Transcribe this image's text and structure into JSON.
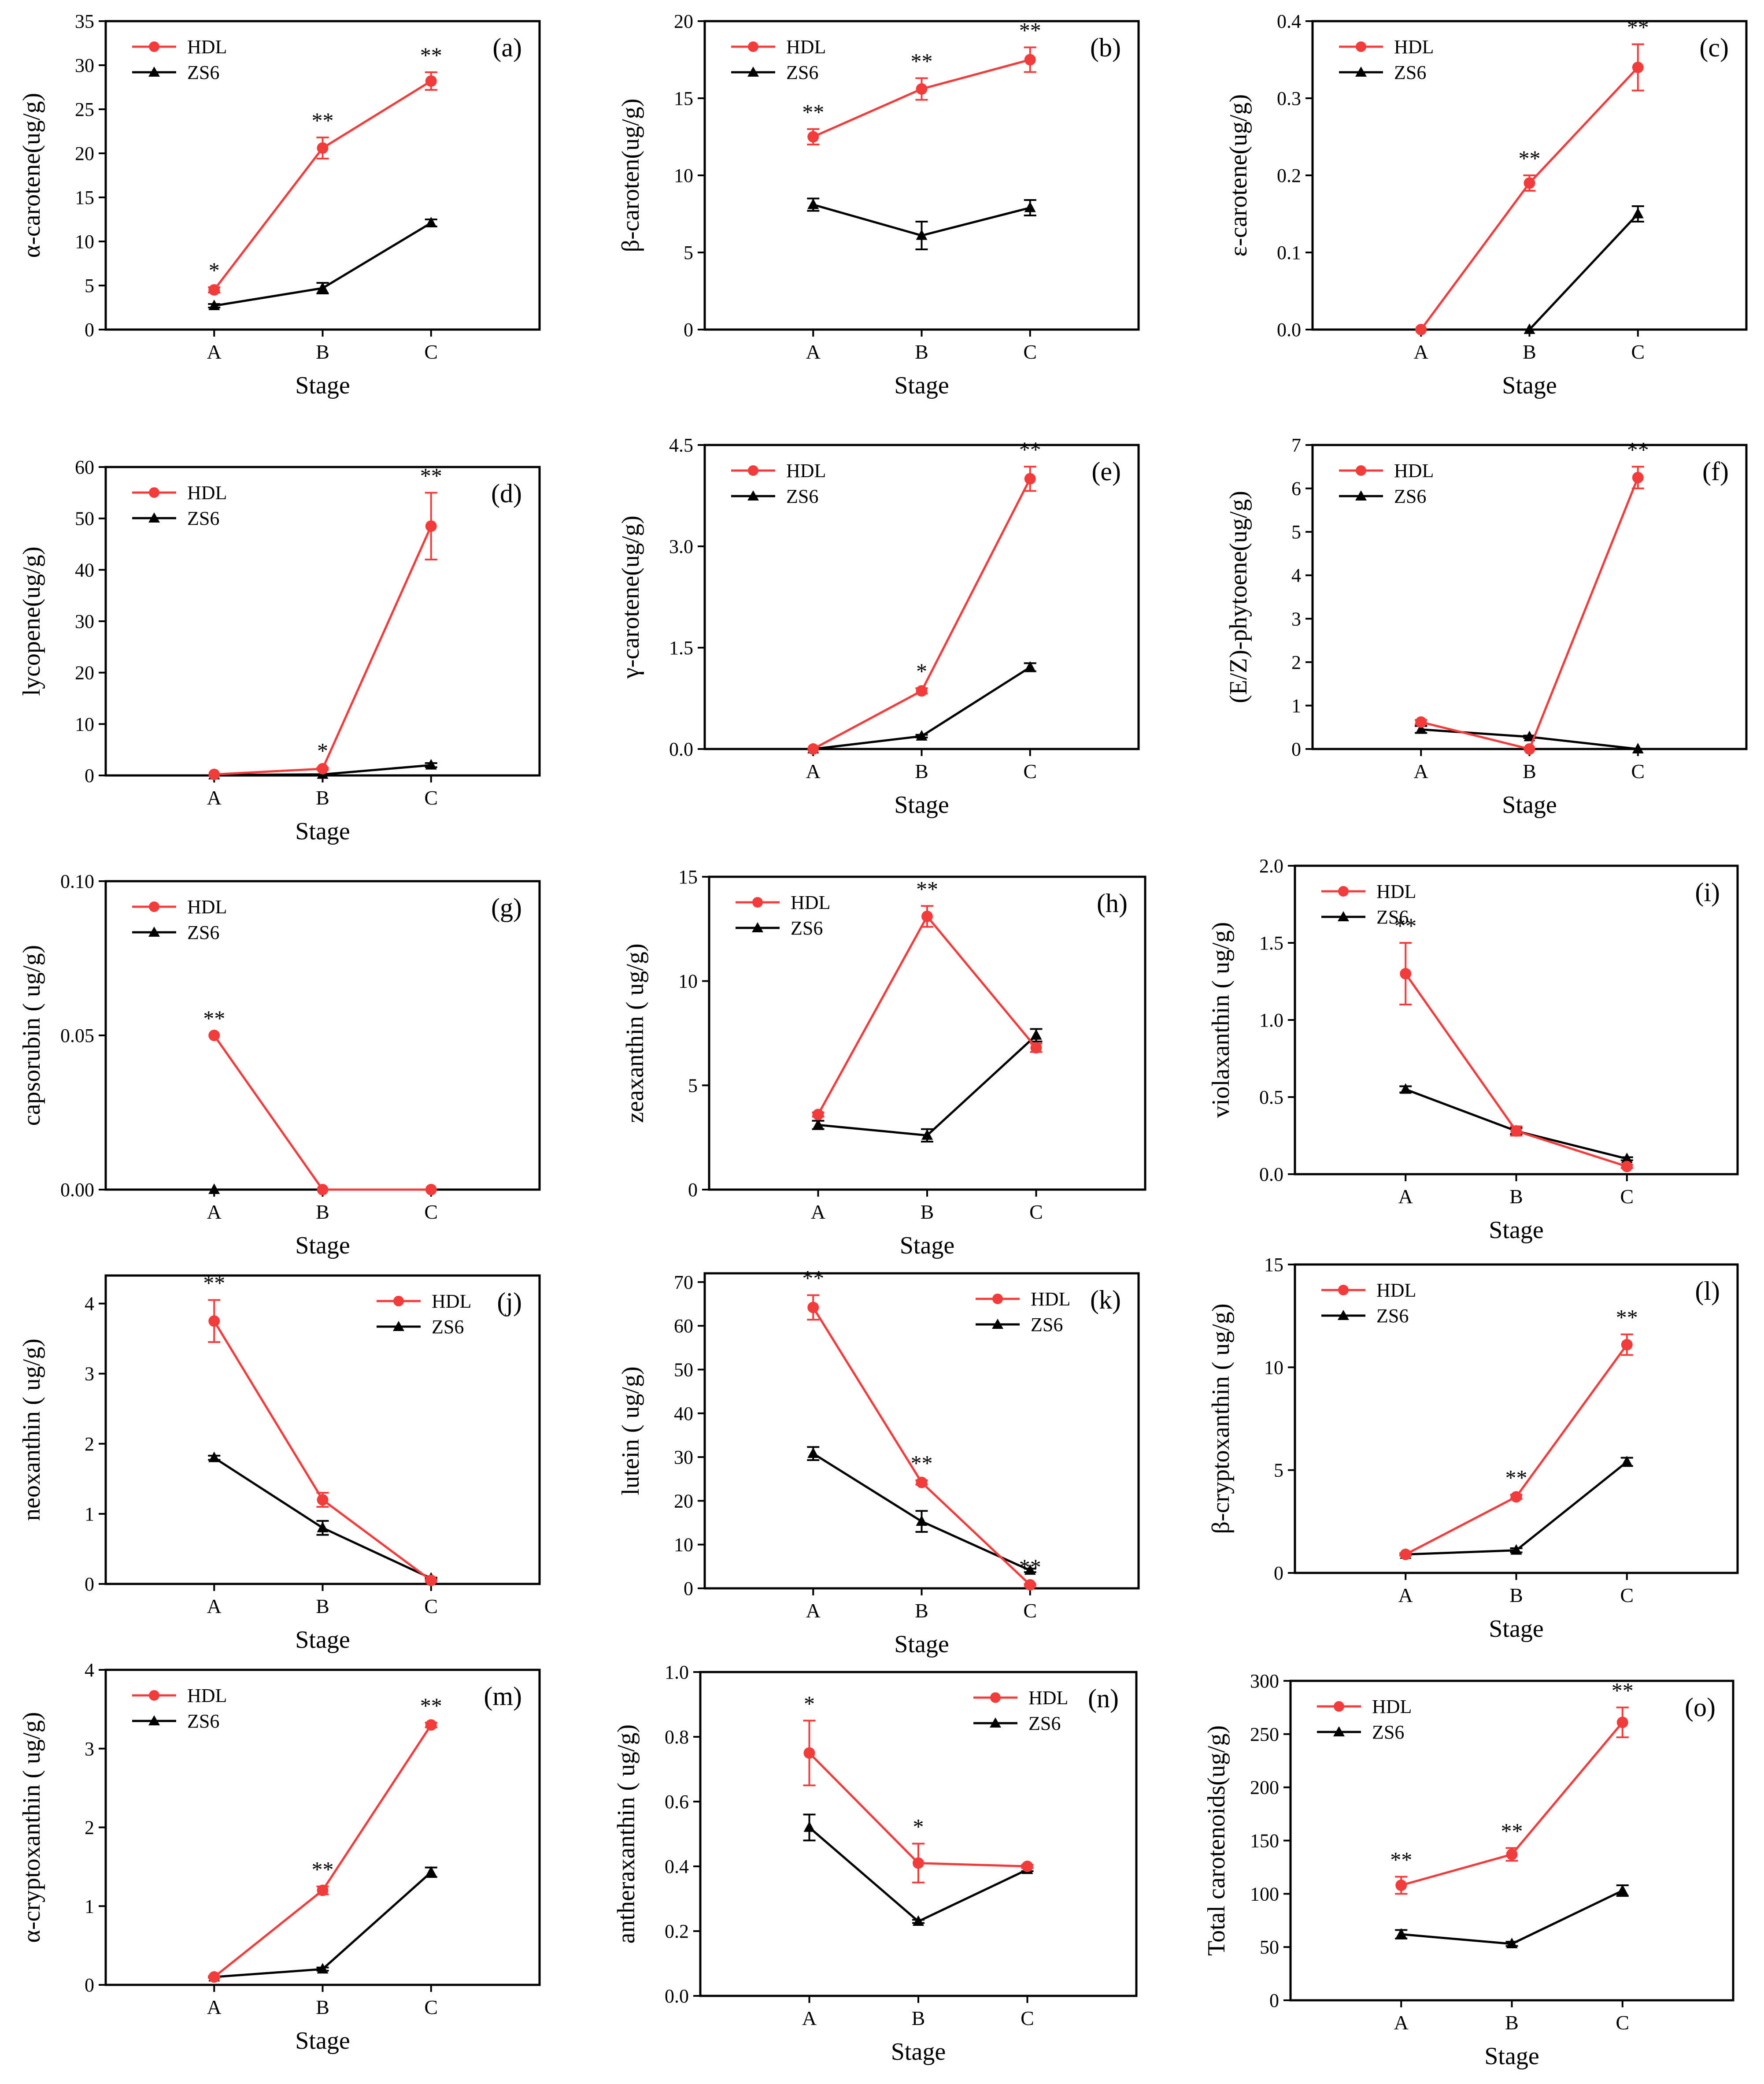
{
  "colors": {
    "hdl": "#f23c3c",
    "zs6": "#000000",
    "axis": "#000000"
  },
  "legend_labels": {
    "hdl": "HDL",
    "zs6": "ZS6"
  },
  "chart_data": [
    {
      "panel": "(a)",
      "type": "line",
      "categories": [
        "A",
        "B",
        "C"
      ],
      "xlabel": "Stage",
      "ylabel": "α-carotene(ug/g)",
      "ylim": [
        0,
        35
      ],
      "yticks": [
        "0",
        "5",
        "10",
        "15",
        "20",
        "25",
        "30",
        "35"
      ],
      "legend_position": "top-left",
      "series": [
        {
          "name": "HDL",
          "values": [
            4.5,
            20.6,
            28.2
          ],
          "errors": [
            0.3,
            1.2,
            1.0
          ],
          "significance": [
            "*",
            "**",
            "**"
          ]
        },
        {
          "name": "ZS6",
          "values": [
            2.7,
            4.7,
            12.1
          ],
          "errors": [
            0.2,
            0.6,
            0.4
          ]
        }
      ]
    },
    {
      "panel": "(b)",
      "type": "line",
      "categories": [
        "A",
        "B",
        "C"
      ],
      "xlabel": "Stage",
      "ylabel": "β-caroten(ug/g)",
      "ylim": [
        0,
        20
      ],
      "yticks": [
        "0",
        "5",
        "10",
        "15",
        "20"
      ],
      "legend_position": "top-left",
      "series": [
        {
          "name": "HDL",
          "values": [
            12.5,
            15.6,
            17.5
          ],
          "errors": [
            0.5,
            0.7,
            0.8
          ],
          "significance": [
            "**",
            "**",
            "**"
          ]
        },
        {
          "name": "ZS6",
          "values": [
            8.1,
            6.1,
            7.9
          ],
          "errors": [
            0.4,
            0.9,
            0.5
          ]
        }
      ]
    },
    {
      "panel": "(c)",
      "type": "line",
      "categories": [
        "A",
        "B",
        "C"
      ],
      "xlabel": "Stage",
      "ylabel": "ε-carotene(ug/g)",
      "ylim": [
        0,
        0.4
      ],
      "yticks": [
        "0.0",
        "0.1",
        "0.2",
        "0.3",
        "0.4"
      ],
      "legend_position": "top-left",
      "series": [
        {
          "name": "HDL",
          "values": [
            0.0,
            0.19,
            0.34
          ],
          "errors": [
            0,
            0.01,
            0.03
          ],
          "significance": [
            "",
            "**",
            "**"
          ]
        },
        {
          "name": "ZS6",
          "values": [
            null,
            0.0,
            0.15
          ],
          "errors": [
            0,
            0,
            0.01
          ]
        }
      ]
    },
    {
      "panel": "(d)",
      "type": "line",
      "categories": [
        "A",
        "B",
        "C"
      ],
      "xlabel": "Stage",
      "ylabel": "lycopene(ug/g)",
      "ylim": [
        0,
        60
      ],
      "yticks": [
        "0",
        "10",
        "20",
        "30",
        "40",
        "50",
        "60"
      ],
      "legend_position": "top-left",
      "series": [
        {
          "name": "HDL",
          "values": [
            0.2,
            1.3,
            48.5
          ],
          "errors": [
            0,
            0.2,
            6.5
          ],
          "significance": [
            "",
            "*",
            "**"
          ]
        },
        {
          "name": "ZS6",
          "values": [
            0.1,
            0.2,
            2.0
          ],
          "errors": [
            0,
            0,
            0.4
          ]
        }
      ]
    },
    {
      "panel": "(e)",
      "type": "line",
      "categories": [
        "A",
        "B",
        "C"
      ],
      "xlabel": "Stage",
      "ylabel": "γ-carotene(ug/g)",
      "ylim": [
        0,
        4.5
      ],
      "yticks": [
        "0.0",
        "1.5",
        "3.0",
        "4.5"
      ],
      "legend_position": "top-left",
      "series": [
        {
          "name": "HDL",
          "values": [
            0.0,
            0.86,
            4.0
          ],
          "errors": [
            0,
            0.04,
            0.18
          ],
          "significance": [
            "",
            "*",
            "**"
          ]
        },
        {
          "name": "ZS6",
          "values": [
            0.0,
            0.19,
            1.21
          ],
          "errors": [
            0,
            0.02,
            0.06
          ]
        }
      ]
    },
    {
      "panel": "(f)",
      "type": "line",
      "categories": [
        "A",
        "B",
        "C"
      ],
      "xlabel": "Stage",
      "ylabel": "(E/Z)-phytoene(ug/g)",
      "ylim": [
        0,
        7
      ],
      "yticks": [
        "0",
        "1",
        "2",
        "3",
        "4",
        "5",
        "6",
        "7"
      ],
      "legend_position": "top-left",
      "series": [
        {
          "name": "HDL",
          "values": [
            0.62,
            0.0,
            6.25
          ],
          "errors": [
            0.05,
            0,
            0.25
          ],
          "significance": [
            "",
            "",
            "**"
          ]
        },
        {
          "name": "ZS6",
          "values": [
            0.45,
            0.28,
            0.0
          ],
          "errors": [
            0.08,
            0.03,
            0
          ]
        }
      ]
    },
    {
      "panel": "(g)",
      "type": "line",
      "categories": [
        "A",
        "B",
        "C"
      ],
      "xlabel": "Stage",
      "ylabel": "capsorubin ( ug/g)",
      "ylim": [
        0,
        0.1
      ],
      "yticks": [
        "0.00",
        "0.05",
        "0.10"
      ],
      "legend_position": "top-left",
      "series": [
        {
          "name": "HDL",
          "values": [
            0.05,
            0.0,
            0.0
          ],
          "errors": [
            0,
            0,
            0
          ],
          "significance": [
            "**",
            "",
            ""
          ]
        },
        {
          "name": "ZS6",
          "values": [
            0.0,
            null,
            null
          ],
          "errors": [
            0,
            0,
            0
          ]
        }
      ]
    },
    {
      "panel": "(h)",
      "type": "line",
      "categories": [
        "A",
        "B",
        "C"
      ],
      "xlabel": "Stage",
      "ylabel": "zeaxanthin ( ug/g)",
      "ylim": [
        0,
        15
      ],
      "yticks": [
        "0",
        "5",
        "10",
        "15"
      ],
      "legend_position": "top-left",
      "series": [
        {
          "name": "HDL",
          "values": [
            3.6,
            13.1,
            6.8
          ],
          "errors": [
            0.1,
            0.5,
            0.2
          ],
          "significance": [
            "",
            "**",
            ""
          ]
        },
        {
          "name": "ZS6",
          "values": [
            3.1,
            2.6,
            7.4
          ],
          "errors": [
            0.2,
            0.3,
            0.3
          ]
        }
      ]
    },
    {
      "panel": "(i)",
      "type": "line",
      "categories": [
        "A",
        "B",
        "C"
      ],
      "xlabel": "Stage",
      "ylabel": "violaxanthin ( ug/g)",
      "ylim": [
        0,
        2.0
      ],
      "yticks": [
        "0.0",
        "0.5",
        "1.0",
        "1.5",
        "2.0"
      ],
      "legend_position": "top-left",
      "series": [
        {
          "name": "HDL",
          "values": [
            1.3,
            0.28,
            0.05
          ],
          "errors": [
            0.2,
            0.03,
            0.01
          ],
          "significance": [
            "**",
            "",
            ""
          ]
        },
        {
          "name": "ZS6",
          "values": [
            0.55,
            0.28,
            0.1
          ],
          "errors": [
            0.02,
            0.02,
            0.01
          ]
        }
      ]
    },
    {
      "panel": "(j)",
      "type": "line",
      "categories": [
        "A",
        "B",
        "C"
      ],
      "xlabel": "Stage",
      "ylabel": "neoxanthin ( ug/g)",
      "ylim": [
        0,
        4.4
      ],
      "yticks": [
        "0",
        "1",
        "2",
        "3",
        "4"
      ],
      "legend_position": "top-right",
      "series": [
        {
          "name": "HDL",
          "values": [
            3.75,
            1.2,
            0.05
          ],
          "errors": [
            0.3,
            0.1,
            0.01
          ],
          "significance": [
            "**",
            "",
            ""
          ]
        },
        {
          "name": "ZS6",
          "values": [
            1.8,
            0.8,
            0.08
          ],
          "errors": [
            0.03,
            0.1,
            0.01
          ]
        }
      ]
    },
    {
      "panel": "(k)",
      "type": "line",
      "categories": [
        "A",
        "B",
        "C"
      ],
      "xlabel": "Stage",
      "ylabel": "lutein ( ug/g)",
      "ylim": [
        0,
        72
      ],
      "yticks": [
        "0",
        "10",
        "20",
        "30",
        "40",
        "50",
        "60",
        "70"
      ],
      "legend_position": "top-right",
      "series": [
        {
          "name": "HDL",
          "values": [
            64.2,
            24.2,
            0.8
          ],
          "errors": [
            2.8,
            0.5,
            0.2
          ],
          "significance": [
            "**",
            "**",
            "**"
          ]
        },
        {
          "name": "ZS6",
          "values": [
            30.8,
            15.3,
            4.1
          ],
          "errors": [
            1.5,
            2.4,
            0.4
          ]
        }
      ]
    },
    {
      "panel": "(l)",
      "type": "line",
      "categories": [
        "A",
        "B",
        "C"
      ],
      "xlabel": "Stage",
      "ylabel": "β-cryptoxanthin ( ug/g)",
      "ylim": [
        0,
        15
      ],
      "yticks": [
        "0",
        "5",
        "10",
        "15"
      ],
      "legend_position": "top-left",
      "series": [
        {
          "name": "HDL",
          "values": [
            0.9,
            3.7,
            11.1
          ],
          "errors": [
            0.05,
            0.1,
            0.5
          ],
          "significance": [
            "",
            "**",
            "**"
          ]
        },
        {
          "name": "ZS6",
          "values": [
            0.9,
            1.1,
            5.4
          ],
          "errors": [
            0.05,
            0.1,
            0.2
          ]
        }
      ]
    },
    {
      "panel": "(m)",
      "type": "line",
      "categories": [
        "A",
        "B",
        "C"
      ],
      "xlabel": "Stage",
      "ylabel": "α-cryptoxanthin ( ug/g)",
      "ylim": [
        0,
        4
      ],
      "yticks": [
        "0",
        "1",
        "2",
        "3",
        "4"
      ],
      "legend_position": "top-left",
      "series": [
        {
          "name": "HDL",
          "values": [
            0.1,
            1.2,
            3.3
          ],
          "errors": [
            0.01,
            0.05,
            0.03
          ],
          "significance": [
            "",
            "**",
            "**"
          ]
        },
        {
          "name": "ZS6",
          "values": [
            0.1,
            0.2,
            1.43
          ],
          "errors": [
            0.01,
            0.02,
            0.06
          ]
        }
      ]
    },
    {
      "panel": "(n)",
      "type": "line",
      "categories": [
        "A",
        "B",
        "C"
      ],
      "xlabel": "Stage",
      "ylabel": "antheraxanthin ( ug/g)",
      "ylim": [
        0,
        1.0
      ],
      "yticks": [
        "0.0",
        "0.2",
        "0.4",
        "0.6",
        "0.8",
        "1.0"
      ],
      "legend_position": "top-right",
      "series": [
        {
          "name": "HDL",
          "values": [
            0.75,
            0.41,
            0.4
          ],
          "errors": [
            0.1,
            0.06,
            0.005
          ],
          "significance": [
            "*",
            "*",
            ""
          ]
        },
        {
          "name": "ZS6",
          "values": [
            0.52,
            0.23,
            0.39
          ],
          "errors": [
            0.04,
            0.005,
            0.005
          ]
        }
      ]
    },
    {
      "panel": "(o)",
      "type": "line",
      "categories": [
        "A",
        "B",
        "C"
      ],
      "xlabel": "Stage",
      "ylabel": "Total carotenoids(ug/g)",
      "ylim": [
        0,
        300
      ],
      "yticks": [
        "0",
        "50",
        "100",
        "150",
        "200",
        "250",
        "300"
      ],
      "legend_position": "top-left",
      "series": [
        {
          "name": "HDL",
          "values": [
            108,
            137,
            261
          ],
          "errors": [
            8,
            6,
            14
          ],
          "significance": [
            "**",
            "**",
            "**"
          ]
        },
        {
          "name": "ZS6",
          "values": [
            62,
            53,
            103
          ],
          "errors": [
            4,
            2,
            5
          ]
        }
      ]
    }
  ]
}
